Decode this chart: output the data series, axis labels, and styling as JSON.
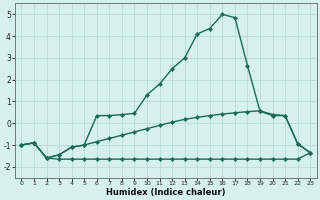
{
  "xlabel": "Humidex (Indice chaleur)",
  "x": [
    0,
    1,
    2,
    3,
    4,
    5,
    6,
    7,
    8,
    9,
    10,
    11,
    12,
    13,
    14,
    15,
    16,
    17,
    18,
    19,
    20,
    21,
    22,
    23
  ],
  "line1": [
    -1.0,
    -0.9,
    -1.6,
    -1.45,
    -1.1,
    -1.0,
    0.35,
    0.35,
    0.4,
    0.45,
    1.3,
    1.8,
    2.5,
    3.0,
    4.1,
    4.35,
    5.0,
    4.85,
    2.65,
    0.55,
    0.35,
    0.35,
    -0.95,
    -1.35
  ],
  "line2": [
    -1.0,
    -0.9,
    -1.6,
    -1.45,
    -1.1,
    -1.0,
    -0.85,
    -0.7,
    -0.55,
    -0.4,
    -0.25,
    -0.1,
    0.05,
    0.18,
    0.27,
    0.35,
    0.42,
    0.48,
    0.53,
    0.57,
    0.4,
    0.35,
    -0.95,
    -1.35
  ],
  "line3": [
    -1.0,
    -0.9,
    -1.6,
    -1.65,
    -1.65,
    -1.65,
    -1.65,
    -1.65,
    -1.65,
    -1.65,
    -1.65,
    -1.65,
    -1.65,
    -1.65,
    -1.65,
    -1.65,
    -1.65,
    -1.65,
    -1.65,
    -1.65,
    -1.65,
    -1.65,
    -1.65,
    -1.35
  ],
  "line_color": "#1a6b5a",
  "bg_color": "#d6f0ee",
  "grid_color": "#b8dbd8",
  "ylim": [
    -2.5,
    5.5
  ],
  "xlim": [
    -0.5,
    23.5
  ],
  "yticks": [
    -2,
    -1,
    0,
    1,
    2,
    3,
    4,
    5
  ],
  "xticks": [
    0,
    1,
    2,
    3,
    4,
    5,
    6,
    7,
    8,
    9,
    10,
    11,
    12,
    13,
    14,
    15,
    16,
    17,
    18,
    19,
    20,
    21,
    22,
    23
  ],
  "marker": "D",
  "marker_size": 2.0,
  "linewidth": 1.0
}
